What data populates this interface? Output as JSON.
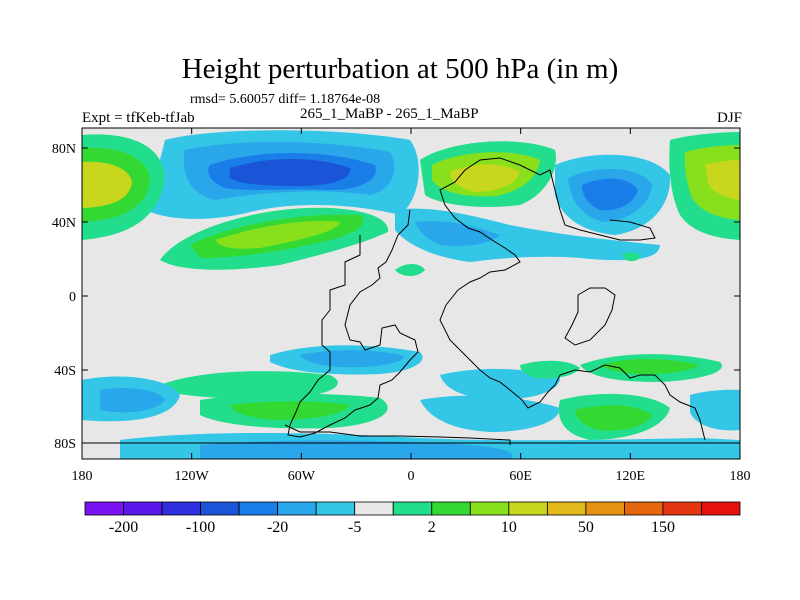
{
  "title": "Height perturbation at 500 hPa (in m)",
  "stats_line": "rmsd= 5.60057 diff= 1.18764e-08",
  "experiment_label": "Expt = tfKeb-tfJab",
  "case_label": "265_1_MaBP - 265_1_MaBP",
  "season_label": "DJF",
  "y_axis_labels": [
    "80N",
    "40N",
    "0",
    "40S",
    "80S"
  ],
  "x_axis_labels": [
    "180",
    "120W",
    "60W",
    "0",
    "60E",
    "120E",
    "180"
  ],
  "colorbar": {
    "colors": [
      "#7a12f2",
      "#5a18ec",
      "#2f2fe0",
      "#1a55d8",
      "#1a7ee8",
      "#2aa6ea",
      "#33c6e6",
      "#e7e7e7",
      "#22dd8c",
      "#33d833",
      "#88e01c",
      "#c9d61e",
      "#e2b81a",
      "#e79212",
      "#e6660e",
      "#e43611",
      "#e6100c"
    ],
    "labels": [
      "-200",
      "-100",
      "-20",
      "-5",
      "2",
      "10",
      "50",
      "150"
    ]
  }
}
